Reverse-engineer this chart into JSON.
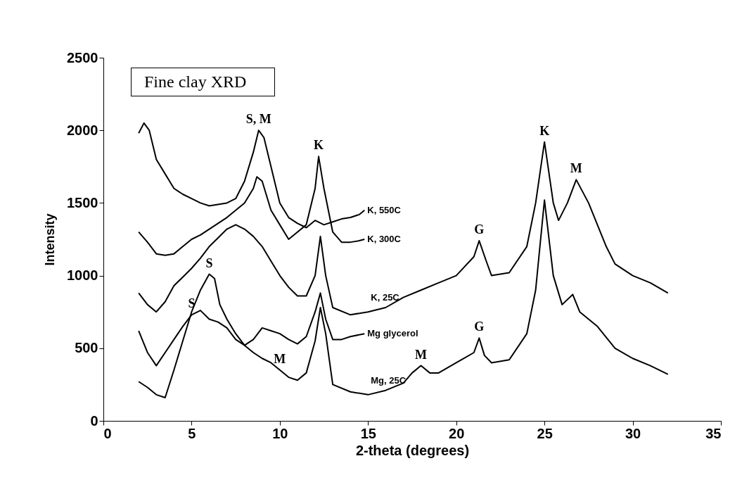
{
  "chart_data": {
    "type": "line",
    "title": "Fine clay XRD",
    "xlabel": "2-theta (degrees)",
    "ylabel": "Intensity",
    "xlim": [
      0,
      35
    ],
    "xticks": [
      0,
      5,
      10,
      15,
      20,
      25,
      30,
      35
    ],
    "ylim": [
      0,
      2500
    ],
    "yticks": [
      0,
      500,
      1000,
      1500,
      2000,
      2500
    ],
    "grid": false,
    "legend": false,
    "marker": "none",
    "line_style": "solid",
    "series": [
      {
        "name": "K, 550C",
        "color": "#000000",
        "x": [
          2,
          2.3,
          2.6,
          3,
          3.5,
          4,
          4.5,
          5,
          5.5,
          6,
          6.5,
          7,
          7.5,
          8,
          8.5,
          8.8,
          9.1,
          9.5,
          10,
          10.5,
          11,
          11.5,
          12,
          12.5,
          13,
          13.5,
          14,
          14.5,
          14.8
        ],
        "values": [
          1980,
          2050,
          2000,
          1800,
          1700,
          1600,
          1560,
          1530,
          1500,
          1480,
          1490,
          1500,
          1530,
          1650,
          1850,
          2000,
          1950,
          1750,
          1500,
          1400,
          1360,
          1330,
          1380,
          1350,
          1370,
          1390,
          1400,
          1420,
          1450
        ]
      },
      {
        "name": "K, 300C",
        "color": "#000000",
        "x": [
          2,
          2.5,
          3,
          3.5,
          4,
          4.5,
          5,
          5.5,
          6,
          6.5,
          7,
          7.5,
          8,
          8.5,
          8.7,
          9,
          9.5,
          10,
          10.5,
          11,
          11.5,
          12,
          12.2,
          12.5,
          13,
          13.5,
          14,
          14.5,
          14.8
        ],
        "values": [
          1300,
          1230,
          1150,
          1140,
          1150,
          1200,
          1250,
          1280,
          1320,
          1360,
          1400,
          1450,
          1500,
          1600,
          1680,
          1650,
          1450,
          1350,
          1250,
          1300,
          1350,
          1600,
          1820,
          1600,
          1300,
          1230,
          1230,
          1240,
          1250
        ]
      },
      {
        "name": "K, 25C",
        "color": "#000000",
        "x": [
          2,
          2.5,
          3,
          3.5,
          4,
          4.5,
          5,
          5.5,
          6,
          6.5,
          7,
          7.5,
          8,
          8.5,
          9,
          9.5,
          10,
          10.5,
          11,
          11.5,
          12,
          12.3,
          12.6,
          13,
          14,
          15,
          16,
          17,
          18,
          19,
          20,
          21,
          21.3,
          21.7,
          22,
          23,
          24,
          24.5,
          25,
          25.5,
          25.8,
          26.3,
          26.8,
          27.5,
          28,
          28.5,
          29,
          30,
          31,
          32
        ],
        "values": [
          880,
          800,
          750,
          820,
          930,
          990,
          1050,
          1120,
          1200,
          1260,
          1320,
          1350,
          1320,
          1270,
          1200,
          1100,
          1000,
          920,
          860,
          860,
          1000,
          1270,
          1000,
          780,
          730,
          750,
          780,
          850,
          900,
          950,
          1000,
          1130,
          1240,
          1100,
          1000,
          1020,
          1200,
          1500,
          1920,
          1500,
          1380,
          1500,
          1660,
          1500,
          1350,
          1200,
          1080,
          1000,
          950,
          880
        ]
      },
      {
        "name": "Mg glycerol",
        "color": "#000000",
        "x": [
          2,
          2.5,
          3,
          3.5,
          4,
          4.5,
          5,
          5.5,
          6,
          6.5,
          7,
          7.5,
          8,
          8.5,
          9,
          9.5,
          10,
          10.5,
          11,
          11.5,
          12,
          12.3,
          12.6,
          13,
          13.5,
          14,
          14.8
        ],
        "values": [
          620,
          470,
          380,
          470,
          560,
          650,
          730,
          760,
          700,
          680,
          640,
          560,
          520,
          560,
          640,
          620,
          600,
          560,
          530,
          580,
          750,
          880,
          700,
          560,
          560,
          580,
          600
        ]
      },
      {
        "name": "Mg, 25C",
        "color": "#000000",
        "x": [
          2,
          2.5,
          3,
          3.5,
          4,
          4.5,
          5,
          5.5,
          6,
          6.3,
          6.6,
          7,
          7.5,
          8,
          8.5,
          9,
          9.5,
          10,
          10.5,
          11,
          11.5,
          12,
          12.3,
          12.6,
          13,
          14,
          15,
          16,
          17,
          17.5,
          18,
          18.5,
          19,
          20,
          21,
          21.3,
          21.6,
          22,
          23,
          24,
          24.5,
          25,
          25.5,
          26,
          26.6,
          27,
          28,
          29,
          30,
          31,
          32
        ],
        "values": [
          270,
          230,
          180,
          160,
          350,
          550,
          750,
          900,
          1010,
          980,
          800,
          700,
          600,
          520,
          470,
          430,
          400,
          350,
          300,
          280,
          330,
          550,
          780,
          600,
          250,
          200,
          180,
          210,
          260,
          330,
          380,
          330,
          330,
          400,
          470,
          570,
          450,
          400,
          420,
          600,
          900,
          1520,
          1000,
          800,
          870,
          750,
          650,
          500,
          430,
          380,
          320
        ]
      }
    ],
    "annotations": [
      {
        "text": "S, M",
        "x": 8.8,
        "y": 2000
      },
      {
        "text": "K",
        "x": 12.2,
        "y": 1820
      },
      {
        "text": "K",
        "x": 25,
        "y": 1920
      },
      {
        "text": "M",
        "x": 26.8,
        "y": 1660
      },
      {
        "text": "G",
        "x": 21.3,
        "y": 1240
      },
      {
        "text": "S",
        "x": 6,
        "y": 1010
      },
      {
        "text": "S",
        "x": 5,
        "y": 730
      },
      {
        "text": "M",
        "x": 10,
        "y": 350
      },
      {
        "text": "M",
        "x": 18,
        "y": 380
      },
      {
        "text": "G",
        "x": 21.3,
        "y": 570
      }
    ]
  }
}
